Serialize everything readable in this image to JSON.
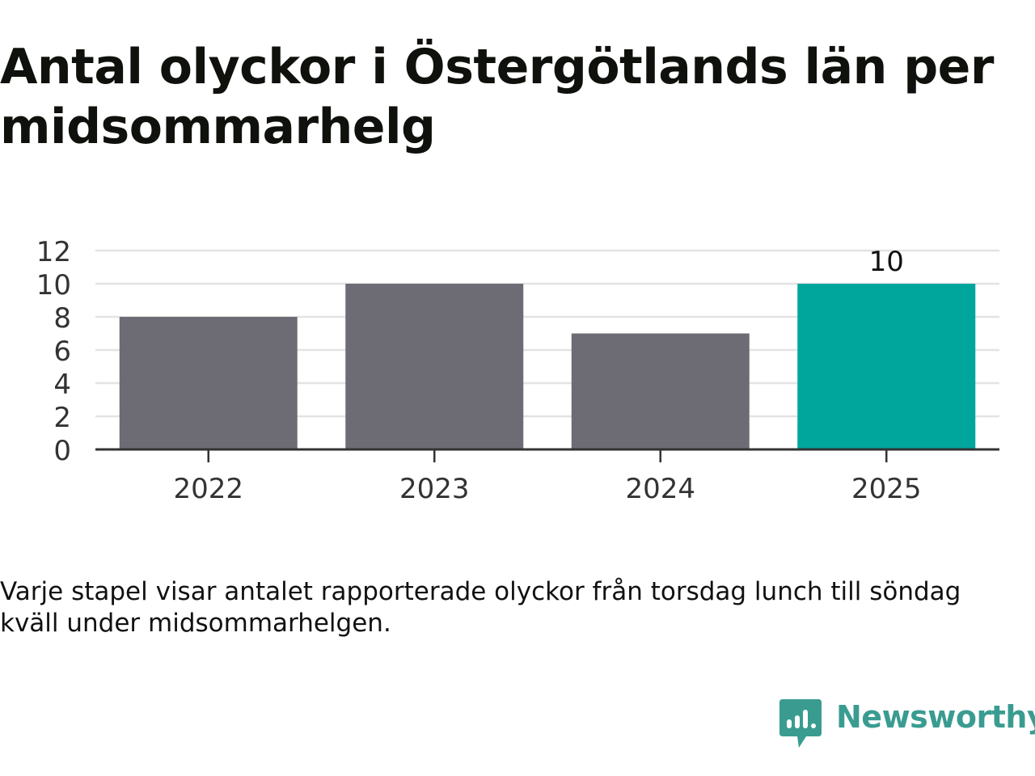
{
  "title": "Antal olyckor i Östergötlands län per midsommarhelg",
  "caption": "Varje stapel visar antalet rapporterade olyckor från torsdag lunch till söndag kväll under midsommarhelgen.",
  "brand": {
    "name": "Newsworthy",
    "icon": "newsworthy-logo-icon",
    "color": "#3a9c91"
  },
  "colors": {
    "bar_default": "#6d6c74",
    "bar_highlight": "#00a69c",
    "grid": "#e3e3e3",
    "axis": "#333333"
  },
  "chart_data": {
    "type": "bar",
    "categories": [
      "2022",
      "2023",
      "2024",
      "2025"
    ],
    "values": [
      8,
      10,
      7,
      10
    ],
    "highlight_index": 3,
    "data_labels": [
      "",
      "",
      "",
      "10"
    ],
    "title": "Antal olyckor i Östergötlands län per midsommarhelg",
    "xlabel": "",
    "ylabel": "",
    "ylim": [
      0,
      12
    ],
    "yticks": [
      0,
      2,
      4,
      6,
      8,
      10,
      12
    ],
    "grid": true,
    "legend": "none"
  }
}
